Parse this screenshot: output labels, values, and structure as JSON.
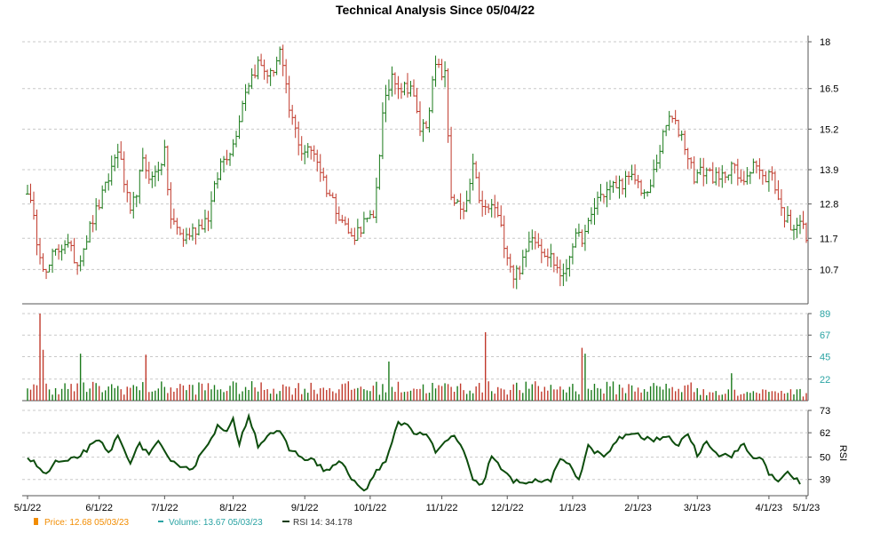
{
  "chart_data": {
    "type": "ohlc",
    "title": "Technical Analysis Since 05/04/22",
    "x_ticks": [
      "5/1/22",
      "6/1/22",
      "7/1/22",
      "8/1/22",
      "9/1/22",
      "10/1/22",
      "11/1/22",
      "12/1/22",
      "1/1/23",
      "2/1/23",
      "3/1/23",
      "4/1/23",
      "5/1/23"
    ],
    "price_panel": {
      "ylim": [
        9.6,
        18.2
      ],
      "y_ticks": [
        10.7,
        11.7,
        12.8,
        13.9,
        15.2,
        16.5,
        18.0
      ],
      "anchors": [
        [
          0,
          13.3
        ],
        [
          3,
          11.7
        ],
        [
          6,
          10.5
        ],
        [
          8,
          11.1
        ],
        [
          12,
          11.6
        ],
        [
          16,
          10.9
        ],
        [
          21,
          12.3
        ],
        [
          25,
          13.3
        ],
        [
          29,
          14.6
        ],
        [
          33,
          12.4
        ],
        [
          37,
          14.1
        ],
        [
          40,
          13.6
        ],
        [
          44,
          14.4
        ],
        [
          46,
          12.3
        ],
        [
          50,
          11.7
        ],
        [
          54,
          12.0
        ],
        [
          58,
          12.4
        ],
        [
          62,
          14.1
        ],
        [
          66,
          14.7
        ],
        [
          70,
          16.5
        ],
        [
          74,
          17.3
        ],
        [
          78,
          16.9
        ],
        [
          81,
          17.7
        ],
        [
          84,
          15.8
        ],
        [
          88,
          14.5
        ],
        [
          92,
          14.5
        ],
        [
          96,
          13.3
        ],
        [
          100,
          12.5
        ],
        [
          104,
          11.7
        ],
        [
          108,
          12.2
        ],
        [
          111,
          12.3
        ],
        [
          114,
          15.6
        ],
        [
          117,
          17.0
        ],
        [
          120,
          16.5
        ],
        [
          123,
          16.6
        ],
        [
          126,
          15.2
        ],
        [
          128,
          15.4
        ],
        [
          131,
          17.2
        ],
        [
          134,
          16.9
        ],
        [
          136,
          13.1
        ],
        [
          140,
          12.4
        ],
        [
          143,
          13.9
        ],
        [
          146,
          12.6
        ],
        [
          150,
          12.7
        ],
        [
          153,
          11.6
        ],
        [
          156,
          10.5
        ],
        [
          159,
          10.9
        ],
        [
          162,
          11.9
        ],
        [
          165,
          11.4
        ],
        [
          168,
          11.1
        ],
        [
          172,
          10.4
        ],
        [
          175,
          11.6
        ],
        [
          179,
          11.8
        ],
        [
          183,
          13.0
        ],
        [
          187,
          13.3
        ],
        [
          191,
          13.5
        ],
        [
          195,
          13.6
        ],
        [
          199,
          13.0
        ],
        [
          203,
          14.6
        ],
        [
          206,
          15.6
        ],
        [
          210,
          15.0
        ],
        [
          214,
          13.7
        ],
        [
          218,
          13.9
        ],
        [
          222,
          13.5
        ],
        [
          226,
          14.1
        ],
        [
          229,
          13.4
        ],
        [
          233,
          14.2
        ],
        [
          236,
          13.6
        ],
        [
          239,
          13.8
        ],
        [
          242,
          12.6
        ],
        [
          245,
          12.1
        ],
        [
          248,
          12.3
        ],
        [
          250,
          11.7
        ]
      ]
    },
    "volume_panel": {
      "ylim": [
        0,
        89
      ],
      "y_ticks": [
        22,
        45,
        67,
        89
      ],
      "spikes": [
        [
          4,
          89
        ],
        [
          5,
          52
        ],
        [
          17,
          48
        ],
        [
          38,
          47
        ],
        [
          116,
          40
        ],
        [
          147,
          70
        ],
        [
          178,
          54
        ],
        [
          179,
          48
        ],
        [
          226,
          28
        ]
      ]
    },
    "rsi_panel": {
      "ylim": [
        31,
        73
      ],
      "y_ticks": [
        39,
        50,
        62,
        73
      ],
      "ylabel": "RSI",
      "anchors": [
        [
          0,
          50
        ],
        [
          3,
          46
        ],
        [
          6,
          41
        ],
        [
          9,
          48
        ],
        [
          12,
          47
        ],
        [
          16,
          50
        ],
        [
          20,
          55
        ],
        [
          23,
          58
        ],
        [
          26,
          52
        ],
        [
          29,
          60
        ],
        [
          33,
          48
        ],
        [
          36,
          56
        ],
        [
          39,
          52
        ],
        [
          42,
          57
        ],
        [
          46,
          47
        ],
        [
          50,
          46
        ],
        [
          53,
          44
        ],
        [
          57,
          55
        ],
        [
          61,
          65
        ],
        [
          64,
          62
        ],
        [
          66,
          68
        ],
        [
          68,
          57
        ],
        [
          71,
          71
        ],
        [
          74,
          56
        ],
        [
          78,
          62
        ],
        [
          81,
          62
        ],
        [
          84,
          54
        ],
        [
          88,
          50
        ],
        [
          92,
          48
        ],
        [
          96,
          43
        ],
        [
          100,
          48
        ],
        [
          104,
          40
        ],
        [
          107,
          34
        ],
        [
          109,
          34
        ],
        [
          112,
          44
        ],
        [
          115,
          47
        ],
        [
          119,
          67
        ],
        [
          122,
          66
        ],
        [
          125,
          61
        ],
        [
          128,
          62
        ],
        [
          131,
          52
        ],
        [
          134,
          57
        ],
        [
          137,
          61
        ],
        [
          140,
          53
        ],
        [
          143,
          38
        ],
        [
          146,
          36
        ],
        [
          149,
          51
        ],
        [
          152,
          44
        ],
        [
          156,
          38
        ],
        [
          160,
          38
        ],
        [
          165,
          38
        ],
        [
          168,
          39
        ],
        [
          171,
          48
        ],
        [
          174,
          47
        ],
        [
          177,
          39
        ],
        [
          180,
          55
        ],
        [
          185,
          50
        ],
        [
          190,
          59
        ],
        [
          194,
          62
        ],
        [
          197,
          60
        ],
        [
          201,
          58
        ],
        [
          205,
          61
        ],
        [
          208,
          55
        ],
        [
          212,
          62
        ],
        [
          215,
          51
        ],
        [
          218,
          58
        ],
        [
          222,
          51
        ],
        [
          226,
          51
        ],
        [
          230,
          56
        ],
        [
          233,
          49
        ],
        [
          236,
          50
        ],
        [
          238,
          42
        ],
        [
          241,
          37
        ],
        [
          244,
          43
        ],
        [
          248,
          37
        ]
      ]
    },
    "legend": [
      {
        "label": "Price: 12.68  05/03/23",
        "color": "#f28c00"
      },
      {
        "label": "Volume: 13.67  05/03/23",
        "color": "#2aa3a3"
      },
      {
        "label": "RSI 14: 34.178",
        "color": "#0d3b0d"
      }
    ],
    "colors": {
      "up": "#1a7a1a",
      "down": "#c0392b",
      "rsi": "#0d4d0d",
      "volume_tick": "#2aa3a3"
    }
  }
}
